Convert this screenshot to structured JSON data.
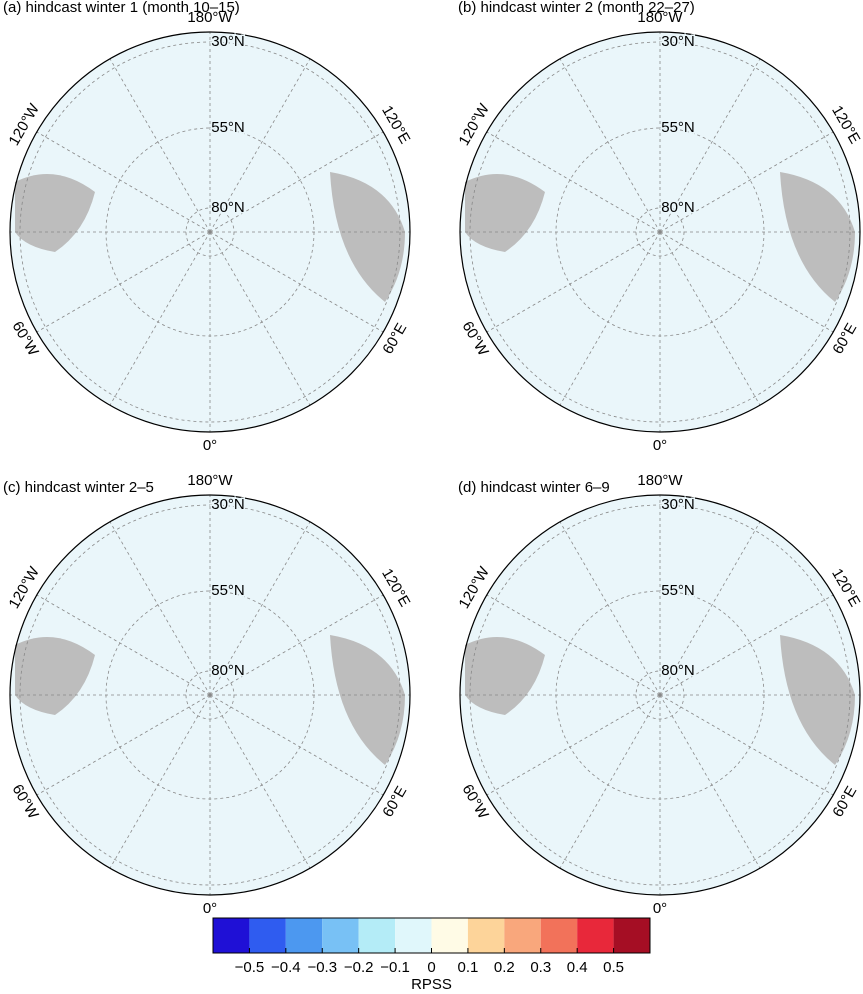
{
  "panels": [
    {
      "title": "(a) hindcast winter 1 (month 10–15)",
      "lon_labels": [
        "180°W",
        "120°E",
        "60°E",
        "0°",
        "60°W",
        "120°W"
      ],
      "lat_labels": [
        "30°N",
        "55°N",
        "80°N"
      ]
    },
    {
      "title": "(b) hindcast winter 2 (month 22–27)",
      "lon_labels": [
        "180°W",
        "120°E",
        "60°E",
        "0°",
        "60°W",
        "120°W"
      ],
      "lat_labels": [
        "30°N",
        "55°N",
        "80°N"
      ]
    },
    {
      "title": "(c) hindcast winter 2–5",
      "lon_labels": [
        "180°W",
        "120°E",
        "60°E",
        "0°",
        "60°W",
        "120°W"
      ],
      "lat_labels": [
        "30°N",
        "55°N",
        "80°N"
      ]
    },
    {
      "title": "(d) hindcast winter 6–9",
      "lon_labels": [
        "180°W",
        "120°E",
        "60°E",
        "0°",
        "60°W",
        "120°W"
      ],
      "lat_labels": [
        "30°N",
        "55°N",
        "80°N"
      ]
    }
  ],
  "colorbar": {
    "label": "RPSS",
    "bins": [
      -0.6,
      -0.5,
      -0.4,
      -0.3,
      -0.2,
      -0.1,
      0,
      0.1,
      0.2,
      0.3,
      0.4,
      0.5,
      0.6
    ],
    "colors": [
      "#1f10d6",
      "#2f5cf0",
      "#4c98f0",
      "#78c1f5",
      "#b4ecf7",
      "#e0f7fb",
      "#fffbe6",
      "#fdd49a",
      "#f9a77c",
      "#f2725a",
      "#e8283a",
      "#a50e24"
    ],
    "xlim": [
      -0.6,
      0.6
    ],
    "xticks": [
      {
        "value": -0.5,
        "label": "−0.5"
      },
      {
        "value": -0.4,
        "label": "−0.4"
      },
      {
        "value": -0.3,
        "label": "−0.3"
      },
      {
        "value": -0.2,
        "label": "−0.2"
      },
      {
        "value": -0.1,
        "label": "−0.1"
      },
      0,
      0.1,
      0.2,
      0.3,
      0.4,
      0.5
    ]
  }
}
